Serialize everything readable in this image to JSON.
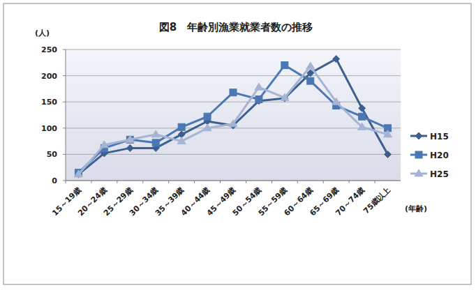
{
  "chart_data": {
    "type": "line",
    "title": "図8　年齢別漁業就業者数の推移",
    "ylabel": "(人)",
    "xlabel": "(年齢)",
    "categories": [
      "15～19歳",
      "20～24歳",
      "25～29歳",
      "30～34歳",
      "35～39歳",
      "40～44歳",
      "45～49歳",
      "50～54歳",
      "55～59歳",
      "60～64歳",
      "65～69歳",
      "70～74歳",
      "75歳以上"
    ],
    "series": [
      {
        "name": "H15",
        "color": "#3b5f8f",
        "marker": "diamond",
        "values": [
          12,
          52,
          62,
          62,
          88,
          113,
          105,
          152,
          157,
          205,
          232,
          138,
          50
        ]
      },
      {
        "name": "H20",
        "color": "#4a78b5",
        "marker": "square",
        "values": [
          15,
          62,
          78,
          72,
          102,
          122,
          168,
          155,
          220,
          190,
          143,
          122,
          100
        ]
      },
      {
        "name": "H25",
        "color": "#a6b4d4",
        "marker": "triangle",
        "values": [
          12,
          68,
          78,
          88,
          75,
          100,
          108,
          178,
          158,
          218,
          150,
          102,
          88
        ]
      }
    ],
    "ylim": [
      0,
      250
    ],
    "yticks": [
      0,
      50,
      100,
      150,
      200,
      250
    ],
    "grid": true,
    "legend": "right"
  }
}
